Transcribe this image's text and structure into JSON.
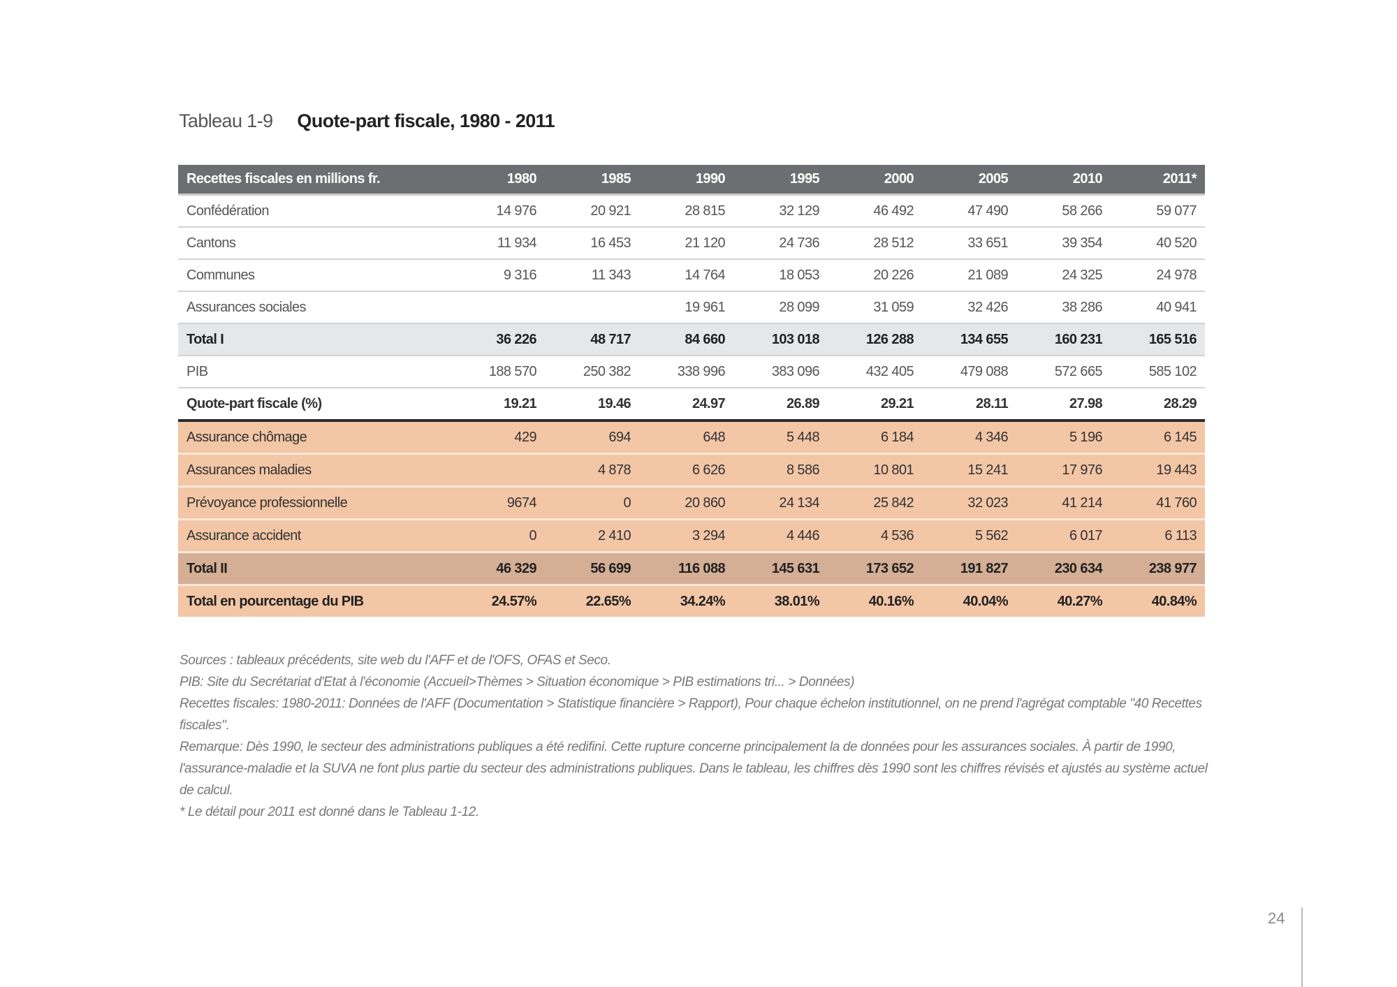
{
  "title": {
    "label": "Tableau 1-9",
    "text": "Quote-part fiscale, 1980 - 2011"
  },
  "table": {
    "columns": [
      "Recettes fiscales en millions fr.",
      "1980",
      "1985",
      "1990",
      "1995",
      "2000",
      "2005",
      "2010",
      "2011*"
    ],
    "rows_top": [
      {
        "label": "Confédération",
        "values": [
          "14 976",
          "20 921",
          "28 815",
          "32 129",
          "46 492",
          "47 490",
          "58 266",
          "59 077"
        ]
      },
      {
        "label": "Cantons",
        "values": [
          "11 934",
          "16 453",
          "21 120",
          "24 736",
          "28 512",
          "33 651",
          "39 354",
          "40 520"
        ]
      },
      {
        "label": "Communes",
        "values": [
          "9 316",
          "11 343",
          "14 764",
          "18 053",
          "20 226",
          "21 089",
          "24 325",
          "24 978"
        ]
      },
      {
        "label": "Assurances sociales",
        "values": [
          "",
          "",
          "19 961",
          "28 099",
          "31 059",
          "32 426",
          "38 286",
          "40 941"
        ]
      },
      {
        "label": "Total I",
        "values": [
          "36 226",
          "48 717",
          "84 660",
          "103 018",
          "126 288",
          "134 655",
          "160 231",
          "165 516"
        ]
      },
      {
        "label": "PIB",
        "values": [
          "188 570",
          "250 382",
          "338 996",
          "383 096",
          "432 405",
          "479 088",
          "572 665",
          "585 102"
        ]
      },
      {
        "label": "Quote-part fiscale (%)",
        "values": [
          "19.21",
          "19.46",
          "24.97",
          "26.89",
          "29.21",
          "28.11",
          "27.98",
          "28.29"
        ]
      }
    ],
    "rows_bottom": [
      {
        "label": "Assurance chômage",
        "values": [
          "429",
          "694",
          "648",
          "5 448",
          "6 184",
          "4 346",
          "5 196",
          "6 145"
        ]
      },
      {
        "label": "Assurances maladies",
        "values": [
          "",
          "4 878",
          "6 626",
          "8 586",
          "10 801",
          "15 241",
          "17 976",
          "19 443"
        ]
      },
      {
        "label": "Prévoyance professionnelle",
        "values": [
          "9674",
          "0",
          "20 860",
          "24 134",
          "25 842",
          "32 023",
          "41 214",
          "41 760"
        ]
      },
      {
        "label": "Assurance accident",
        "values": [
          "0",
          "2 410",
          "3 294",
          "4 446",
          "4 536",
          "5 562",
          "6 017",
          "6 113"
        ]
      },
      {
        "label": "Total II",
        "values": [
          "46 329",
          "56 699",
          "116 088",
          "145 631",
          "173 652",
          "191 827",
          "230 634",
          "238 977"
        ]
      },
      {
        "label": "Total en pourcentage du PIB",
        "values": [
          "24.57%",
          "22.65%",
          "34.24%",
          "38.01%",
          "40.16%",
          "40.04%",
          "40.27%",
          "40.84%"
        ]
      }
    ],
    "colors": {
      "header": "#6d6e71",
      "total_i": "#e6e7e8",
      "social": "#f3c6a6",
      "total_ii": "#d4ae95"
    }
  },
  "notes": [
    "Sources : tableaux précédents, site web du l'AFF et de l'OFS, OFAS et Seco.",
    "PIB: Site du Secrétariat d'Etat à l'économie (Accueil>Thèmes > Situation économique > PIB estimations tri... > Données)",
    "Recettes fiscales: 1980-2011: Données de l'AFF (Documentation > Statistique financière > Rapport), Pour chaque échelon institutionnel, on ne prend l'agrégat comptable \"40 Recettes fiscales\".",
    "Remarque: Dès 1990, le secteur des administrations publiques a été redifini. Cette rupture concerne principalement la de données pour les assurances sociales. À partir de 1990, l'assurance-maladie et la SUVA ne font plus partie du secteur des administrations publiques. Dans le tableau, les chiffres dès 1990 sont les chiffres révisés et ajustés au système actuel de calcul.",
    "* Le détail pour 2011 est donné dans le Tableau 1-12."
  ],
  "page_number": "24"
}
